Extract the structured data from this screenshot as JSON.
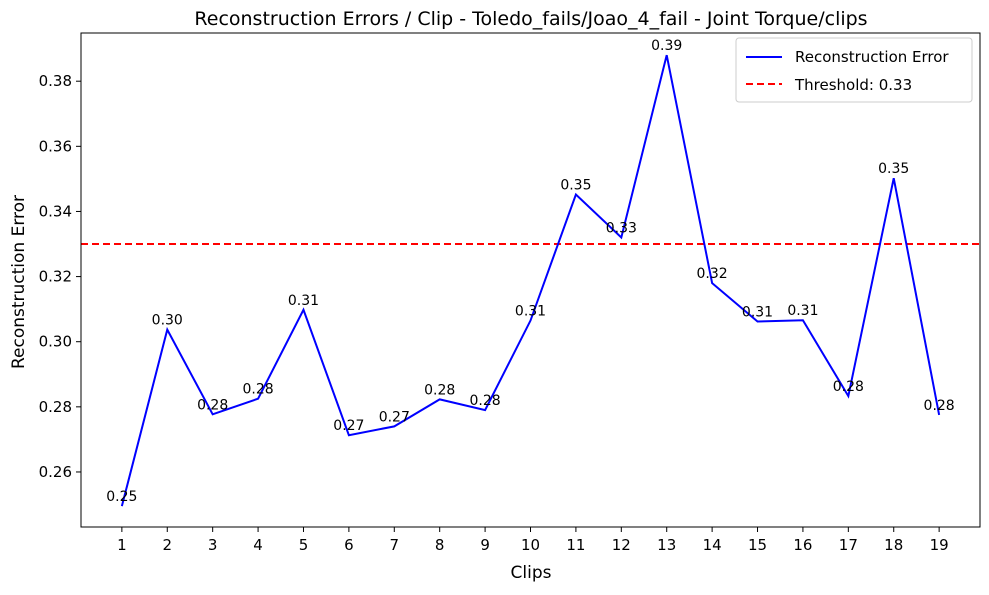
{
  "chart_data": {
    "type": "line",
    "title": "Reconstruction Errors / Clip - Toledo_fails/Joao_4_fail - Joint Torque/clips",
    "xlabel": "Clips",
    "ylabel": "Reconstruction Error",
    "x": [
      1,
      2,
      3,
      4,
      5,
      6,
      7,
      8,
      9,
      10,
      11,
      12,
      13,
      14,
      15,
      16,
      17,
      18,
      19
    ],
    "x_tick_labels": [
      "1",
      "2",
      "3",
      "4",
      "5",
      "6",
      "7",
      "8",
      "9",
      "10",
      "11",
      "12",
      "13",
      "14",
      "15",
      "16",
      "17",
      "18",
      "19"
    ],
    "xlim": [
      0.1,
      19.9
    ],
    "ylim": [
      0.2431,
      0.3948
    ],
    "y_ticks": [
      0.26,
      0.28,
      0.3,
      0.32,
      0.34,
      0.36,
      0.38
    ],
    "y_tick_labels": [
      "0.26",
      "0.28",
      "0.30",
      "0.32",
      "0.34",
      "0.36",
      "0.38"
    ],
    "grid": false,
    "legend_position": "top-right",
    "series": [
      {
        "name": "Reconstruction Error",
        "color": "#0000ff",
        "style": "solid",
        "values": [
          0.2495,
          0.3037,
          0.2777,
          0.2825,
          0.3098,
          0.2713,
          0.274,
          0.2823,
          0.279,
          0.3065,
          0.3452,
          0.332,
          0.388,
          0.318,
          0.3062,
          0.3066,
          0.2833,
          0.3502,
          0.2775
        ],
        "data_labels": [
          "0.25",
          "0.30",
          "0.28",
          "0.28",
          "0.31",
          "0.27",
          "0.27",
          "0.28",
          "0.28",
          "0.31",
          "0.35",
          "0.33",
          "0.39",
          "0.32",
          "0.31",
          "0.31",
          "0.28",
          "0.35",
          "0.28"
        ]
      }
    ],
    "threshold": {
      "name": "Threshold: 0.33",
      "value": 0.33,
      "color": "#ff0000",
      "style": "dashed"
    }
  }
}
